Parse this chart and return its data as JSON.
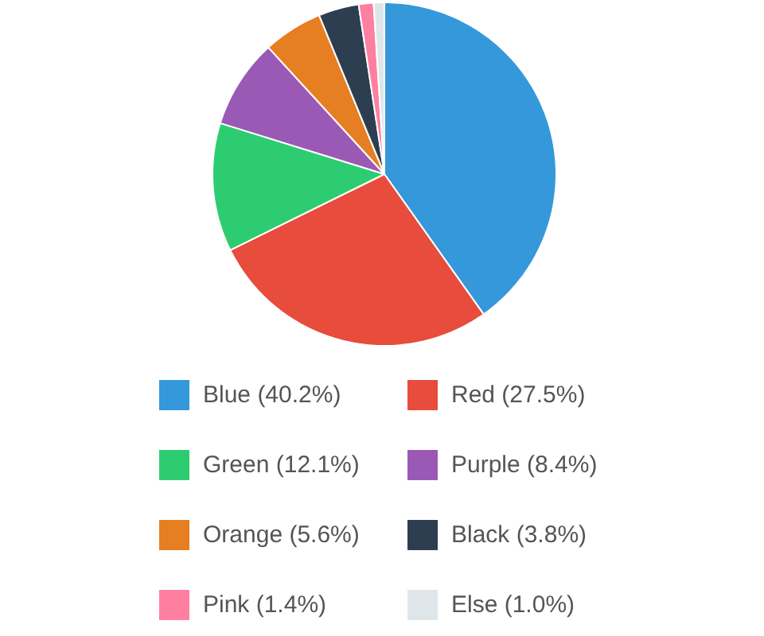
{
  "chart_data": {
    "type": "pie",
    "categories": [
      "Blue (40.2%)",
      "Red (27.5%)",
      "Green (12.1%)",
      "Purple (8.4%)",
      "Orange (5.6%)",
      "Black (3.8%)",
      "Pink (1.4%)",
      "Else (1.0%)"
    ],
    "values": [
      40.2,
      27.5,
      12.1,
      8.4,
      5.6,
      3.8,
      1.4,
      1.0
    ],
    "colors": [
      "#3498db",
      "#e74c3c",
      "#2ecc71",
      "#9b59b6",
      "#e67e22",
      "#2c3e50",
      "#ff7fa0",
      "#dfe6e9"
    ],
    "legend": "bottom"
  }
}
